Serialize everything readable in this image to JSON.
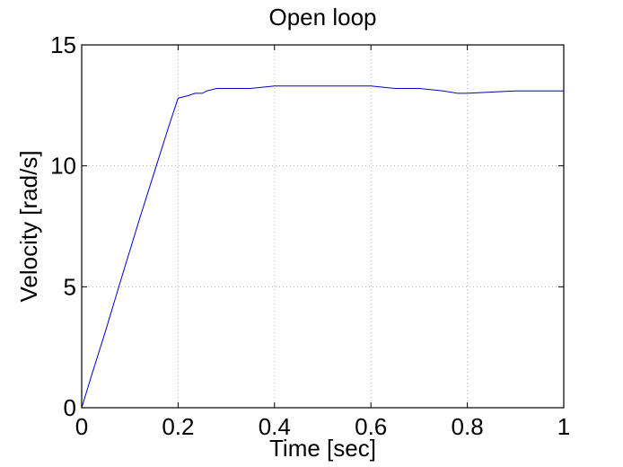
{
  "chart_data": {
    "type": "line",
    "title": "Open loop",
    "xlabel": "Time [sec]",
    "ylabel": "Velocity [rad/s]",
    "xlim": [
      0,
      1
    ],
    "ylim": [
      0,
      15
    ],
    "xticks": [
      0,
      0.2,
      0.4,
      0.6,
      0.8,
      1
    ],
    "xtick_labels": [
      "0",
      "0.2",
      "0.4",
      "0.6",
      "0.8",
      "1"
    ],
    "yticks": [
      0,
      5,
      10,
      15
    ],
    "ytick_labels": [
      "0",
      "5",
      "10",
      "15"
    ],
    "grid": true,
    "series": [
      {
        "color": "#0000cc",
        "x": [
          0,
          0.02,
          0.05,
          0.08,
          0.1,
          0.12,
          0.15,
          0.18,
          0.2,
          0.22,
          0.235,
          0.25,
          0.26,
          0.28,
          0.3,
          0.35,
          0.4,
          0.45,
          0.5,
          0.55,
          0.6,
          0.65,
          0.7,
          0.75,
          0.78,
          0.8,
          0.85,
          0.9,
          0.95,
          1.0
        ],
        "y": [
          0,
          1.3,
          3.2,
          5.2,
          6.5,
          7.8,
          9.7,
          11.6,
          12.8,
          12.9,
          13.0,
          13.0,
          13.1,
          13.2,
          13.2,
          13.2,
          13.3,
          13.3,
          13.3,
          13.3,
          13.3,
          13.2,
          13.2,
          13.1,
          13.0,
          13.0,
          13.05,
          13.1,
          13.1,
          13.1
        ]
      }
    ]
  }
}
